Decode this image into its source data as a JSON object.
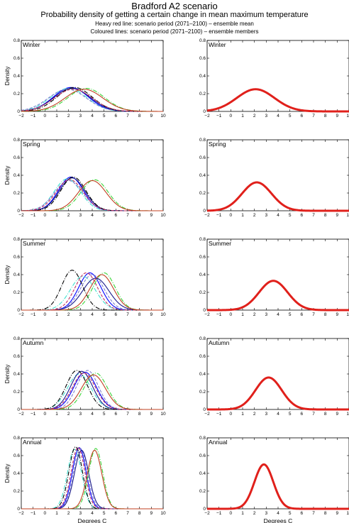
{
  "figure": {
    "title": "Bradford A2 scenario",
    "subtitle": "Probability density of getting a certain change in mean maximum temperature",
    "note_1": "Heavy red line: scenario period (2071–2100) – ensemble mean",
    "note_2": "Coloured lines: scenario period (2071–2100) – ensemble members"
  },
  "axes": {
    "xlabel": "Degrees C",
    "ylabel": "Density",
    "xlim": [
      -2,
      10
    ],
    "ylim": [
      0,
      0.8
    ],
    "xticks": [
      -2,
      -1,
      0,
      1,
      2,
      3,
      4,
      5,
      6,
      7,
      8,
      9,
      10
    ],
    "yticks": [
      0,
      0.2,
      0.4,
      0.6,
      0.8
    ]
  },
  "colors": {
    "ensemble_mean": "#e0201b",
    "members": [
      "#0000ff",
      "#40e0d0",
      "#8080d0",
      "#1a1a8a",
      "#000000",
      "#c03060",
      "#3ad63a",
      "#c04020"
    ]
  },
  "chart_data": [
    {
      "type": "line",
      "panel": "members",
      "label": "Winter",
      "series": [
        {
          "mean": 2.2,
          "peak": 0.27
        },
        {
          "mean": 2.0,
          "peak": 0.26
        },
        {
          "mean": 1.9,
          "peak": 0.25
        },
        {
          "mean": 2.3,
          "peak": 0.26
        },
        {
          "mean": 2.5,
          "peak": 0.27
        },
        {
          "mean": 2.4,
          "peak": 0.25
        },
        {
          "mean": 3.5,
          "peak": 0.26
        },
        {
          "mean": 3.3,
          "peak": 0.25
        }
      ]
    },
    {
      "type": "line",
      "panel": "mean",
      "label": "Winter",
      "series": [
        {
          "mean": 2.1,
          "peak": 0.25
        }
      ]
    },
    {
      "type": "line",
      "panel": "members",
      "label": "Spring",
      "series": [
        {
          "mean": 2.2,
          "peak": 0.38
        },
        {
          "mean": 1.9,
          "peak": 0.36
        },
        {
          "mean": 2.0,
          "peak": 0.34
        },
        {
          "mean": 2.3,
          "peak": 0.37
        },
        {
          "mean": 2.4,
          "peak": 0.38
        },
        {
          "mean": 2.1,
          "peak": 0.35
        },
        {
          "mean": 4.2,
          "peak": 0.35
        },
        {
          "mean": 4.0,
          "peak": 0.34
        }
      ]
    },
    {
      "type": "line",
      "panel": "mean",
      "label": "Spring",
      "series": [
        {
          "mean": 2.2,
          "peak": 0.32
        }
      ]
    },
    {
      "type": "line",
      "panel": "members",
      "label": "Summer",
      "series": [
        {
          "mean": 3.8,
          "peak": 0.42
        },
        {
          "mean": 3.2,
          "peak": 0.38
        },
        {
          "mean": 4.0,
          "peak": 0.4
        },
        {
          "mean": 4.3,
          "peak": 0.36
        },
        {
          "mean": 2.3,
          "peak": 0.45
        },
        {
          "mean": 3.5,
          "peak": 0.42
        },
        {
          "mean": 5.0,
          "peak": 0.42
        },
        {
          "mean": 4.8,
          "peak": 0.4
        }
      ]
    },
    {
      "type": "line",
      "panel": "mean",
      "label": "Summer",
      "series": [
        {
          "mean": 3.6,
          "peak": 0.33
        }
      ]
    },
    {
      "type": "line",
      "panel": "members",
      "label": "Autumn",
      "series": [
        {
          "mean": 3.4,
          "peak": 0.42
        },
        {
          "mean": 2.9,
          "peak": 0.4
        },
        {
          "mean": 3.6,
          "peak": 0.44
        },
        {
          "mean": 3.1,
          "peak": 0.43
        },
        {
          "mean": 2.7,
          "peak": 0.44
        },
        {
          "mean": 3.3,
          "peak": 0.41
        },
        {
          "mean": 4.3,
          "peak": 0.41
        },
        {
          "mean": 4.1,
          "peak": 0.39
        }
      ]
    },
    {
      "type": "line",
      "panel": "mean",
      "label": "Autumn",
      "series": [
        {
          "mean": 3.2,
          "peak": 0.36
        }
      ]
    },
    {
      "type": "line",
      "panel": "members",
      "label": "Annual",
      "series": [
        {
          "mean": 2.9,
          "peak": 0.69
        },
        {
          "mean": 2.5,
          "peak": 0.67
        },
        {
          "mean": 3.0,
          "peak": 0.68
        },
        {
          "mean": 3.1,
          "peak": 0.66
        },
        {
          "mean": 2.6,
          "peak": 0.7
        },
        {
          "mean": 2.8,
          "peak": 0.69
        },
        {
          "mean": 4.3,
          "peak": 0.68
        },
        {
          "mean": 4.2,
          "peak": 0.66
        }
      ]
    },
    {
      "type": "line",
      "panel": "mean",
      "label": "Annual",
      "series": [
        {
          "mean": 2.8,
          "peak": 0.5
        }
      ]
    }
  ]
}
